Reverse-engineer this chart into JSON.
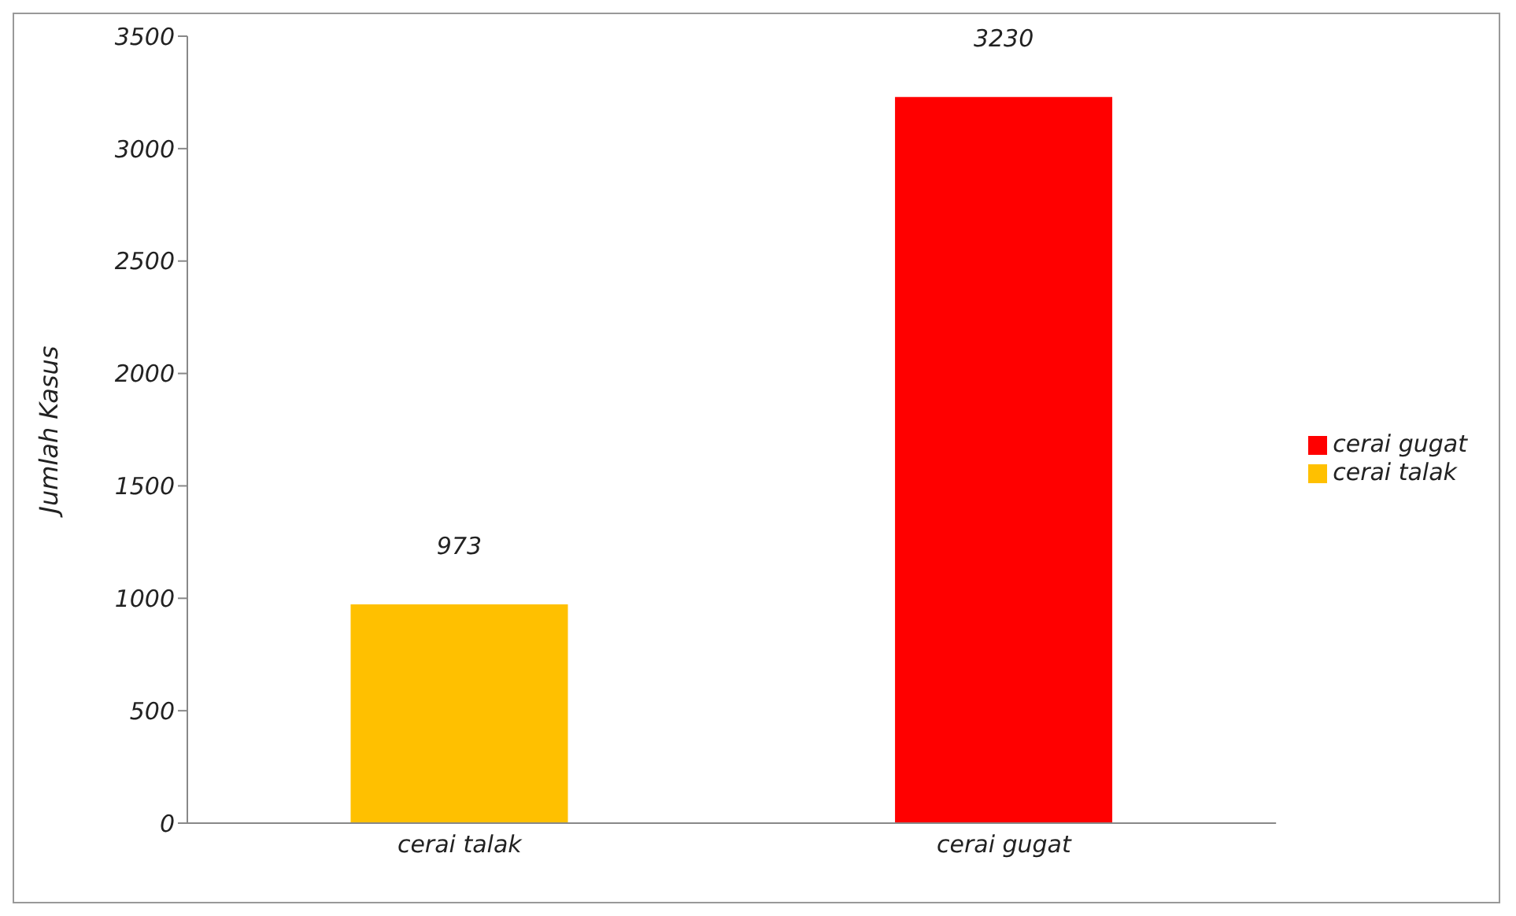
{
  "chart_data": {
    "type": "bar",
    "ylabel": "Jumlah Kasus",
    "categories": [
      "cerai talak",
      "cerai gugat"
    ],
    "stacked": true,
    "series": [
      {
        "name": "cerai talak",
        "color": "#ffc000",
        "values": [
          973,
          null
        ]
      },
      {
        "name": "cerai gugat",
        "color": "#ff0000",
        "values": [
          null,
          3230
        ]
      }
    ],
    "ylim": [
      0,
      3500
    ],
    "yticks": [
      0,
      500,
      1000,
      1500,
      2000,
      2500,
      3000,
      3500
    ],
    "data_labels": true,
    "legend": "right",
    "grid": false
  }
}
